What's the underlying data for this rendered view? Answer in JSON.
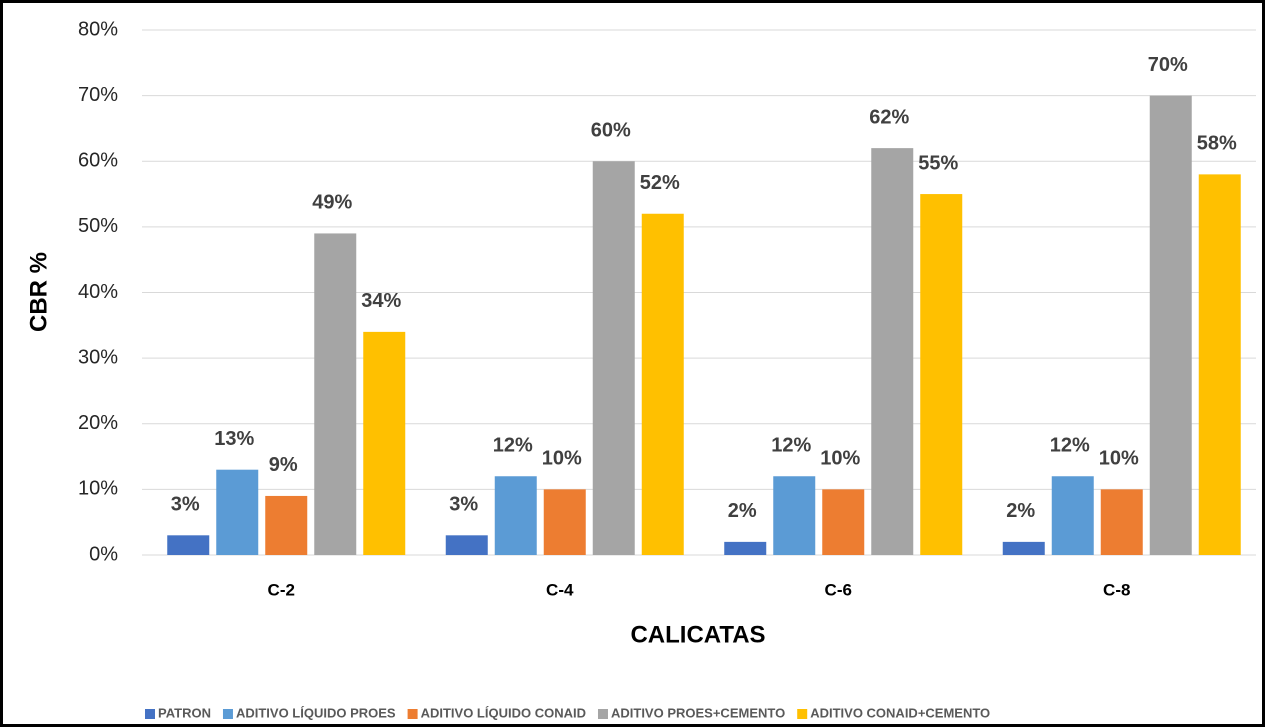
{
  "chart_data": {
    "type": "bar",
    "x_label": "CALICATAS",
    "y_label": "CBR %",
    "categories": [
      "C-2",
      "C-4",
      "C-6",
      "C-8"
    ],
    "series": [
      {
        "name": "PATRON",
        "color": "#4472c4",
        "values": [
          3,
          3,
          2,
          2
        ],
        "value_labels": [
          "3%",
          "3%",
          "2%",
          "2%"
        ]
      },
      {
        "name": "ADITIVO LÍQUIDO PROES",
        "color": "#5b9bd5",
        "values": [
          13,
          12,
          12,
          12
        ],
        "value_labels": [
          "13%",
          "12%",
          "12%",
          "12%"
        ]
      },
      {
        "name": "ADITIVO LÍQUIDO CONAID",
        "color": "#ed7d31",
        "values": [
          9,
          10,
          10,
          10
        ],
        "value_labels": [
          "9%",
          "10%",
          "10%",
          "10%"
        ]
      },
      {
        "name": "ADITIVO PROES+CEMENTO",
        "color": "#a5a5a5",
        "values": [
          49,
          60,
          62,
          70
        ],
        "value_labels": [
          "49%",
          "60%",
          "62%",
          "70%"
        ]
      },
      {
        "name": "ADITIVO CONAID+CEMENTO",
        "color": "#ffc000",
        "values": [
          34,
          52,
          55,
          58
        ],
        "value_labels": [
          "34%",
          "52%",
          "55%",
          "58%"
        ]
      }
    ],
    "ylim": [
      0,
      80
    ],
    "yticks": [
      {
        "value": 0,
        "label": "0%"
      },
      {
        "value": 10,
        "label": "10%"
      },
      {
        "value": 20,
        "label": "20%"
      },
      {
        "value": 30,
        "label": "30%"
      },
      {
        "value": 40,
        "label": "40%"
      },
      {
        "value": 50,
        "label": "50%"
      },
      {
        "value": 60,
        "label": "60%"
      },
      {
        "value": 70,
        "label": "70%"
      },
      {
        "value": 80,
        "label": "80%"
      }
    ],
    "grid": true,
    "legend": "bottom"
  }
}
